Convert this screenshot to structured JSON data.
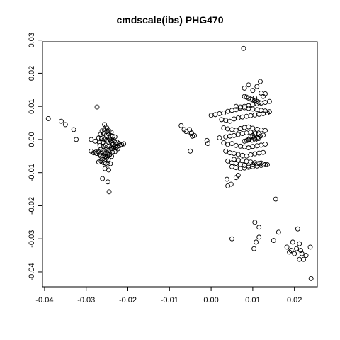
{
  "chart_data": {
    "type": "scatter",
    "title": "cmdscale(ibs) PHG470",
    "xlabel": "",
    "ylabel": "",
    "xlim": [
      -0.0405,
      0.0255
    ],
    "ylim": [
      -0.0445,
      0.0295
    ],
    "xticks": [
      -0.04,
      -0.03,
      -0.02,
      -0.01,
      0.0,
      0.01,
      0.02
    ],
    "xtick_labels": [
      "-0.04",
      "-0.03",
      "-0.02",
      "-0.01",
      "0.00",
      "0.01",
      "0.02"
    ],
    "yticks": [
      -0.04,
      -0.03,
      -0.02,
      -0.01,
      0.0,
      0.01,
      0.02,
      0.03
    ],
    "ytick_labels": [
      "-0.04",
      "-0.03",
      "-0.02",
      "-0.01",
      "0.00",
      "0.01",
      "0.02",
      "0.03"
    ],
    "grid": false,
    "legend": "none",
    "marker": "open-circle",
    "series": [
      {
        "x": [
          -0.0391,
          -0.036,
          -0.035,
          -0.033,
          -0.0324,
          -0.0274,
          -0.0288,
          -0.0278,
          -0.0268,
          -0.026,
          -0.0255,
          -0.0248,
          -0.0242,
          -0.0262,
          -0.0256,
          -0.025,
          -0.0245,
          -0.024,
          -0.0266,
          -0.0258,
          -0.0252,
          -0.0246,
          -0.0241,
          -0.0236,
          -0.0231,
          -0.027,
          -0.0263,
          -0.0257,
          -0.0251,
          -0.0244,
          -0.0238,
          -0.0232,
          -0.0226,
          -0.0221,
          -0.0215,
          -0.0267,
          -0.0259,
          -0.0253,
          -0.0247,
          -0.0243,
          -0.0239,
          -0.0234,
          -0.0228,
          -0.0225,
          -0.0219,
          -0.0288,
          -0.0282,
          -0.0277,
          -0.0271,
          -0.0265,
          -0.0259,
          -0.0252,
          -0.0246,
          -0.024,
          -0.0235,
          -0.0229,
          -0.0275,
          -0.0268,
          -0.0262,
          -0.0255,
          -0.0249,
          -0.0243,
          -0.0237,
          -0.0231,
          -0.0265,
          -0.026,
          -0.0254,
          -0.0249,
          -0.0244,
          -0.0239,
          -0.0261,
          -0.0257,
          -0.0251,
          -0.0247,
          -0.027,
          -0.0264,
          -0.0258,
          -0.0253,
          -0.0248,
          -0.0242,
          -0.0255,
          -0.0246,
          -0.0261,
          -0.0248,
          -0.0245,
          -0.0256,
          -0.0252,
          -0.025,
          -0.0241,
          -0.0238,
          -0.0236,
          -0.023,
          -0.0228,
          -0.0224,
          -0.021,
          -0.0072,
          -0.0065,
          -0.006,
          -0.0052,
          -0.0048,
          -0.0045,
          -0.004,
          -0.005,
          -0.0047,
          -0.001,
          -0.0008,
          0.0,
          0.001,
          0.002,
          0.003,
          0.004,
          0.005,
          0.006,
          0.007,
          0.008,
          0.009,
          0.01,
          0.011,
          0.012,
          0.013,
          0.014,
          0.0025,
          0.0035,
          0.0045,
          0.0055,
          0.0065,
          0.0075,
          0.0085,
          0.0095,
          0.0105,
          0.0115,
          0.0125,
          0.0135,
          0.003,
          0.004,
          0.005,
          0.006,
          0.007,
          0.008,
          0.009,
          0.01,
          0.011,
          0.012,
          0.013,
          0.002,
          0.0035,
          0.0045,
          0.0055,
          0.0065,
          0.0075,
          0.0085,
          0.0095,
          0.0105,
          0.0115,
          0.0125,
          0.003,
          0.004,
          0.005,
          0.006,
          0.007,
          0.008,
          0.009,
          0.01,
          0.011,
          0.012,
          0.013,
          0.0035,
          0.0045,
          0.0055,
          0.0065,
          0.0075,
          0.0085,
          0.0095,
          0.0105,
          0.0115,
          0.0125,
          0.004,
          0.005,
          0.006,
          0.007,
          0.008,
          0.009,
          0.01,
          0.011,
          0.012,
          0.008,
          0.0085,
          0.009,
          0.0095,
          0.01,
          0.0105,
          0.011,
          0.0115,
          0.0095,
          0.01,
          0.0105,
          0.011,
          0.009,
          0.0098,
          0.0104,
          0.0112,
          0.0118,
          0.008,
          0.0086,
          0.0092,
          0.0106,
          0.0114,
          0.006,
          0.007,
          0.008,
          0.009,
          0.01,
          0.011,
          0.012,
          0.013,
          0.014,
          0.0055,
          0.0065,
          0.0075,
          0.0085,
          0.0095,
          0.0105,
          0.0115,
          0.0125,
          0.0135,
          0.005,
          0.006,
          0.007,
          0.008,
          0.009,
          0.01,
          0.011,
          0.012,
          0.013,
          0.008,
          0.01,
          0.012,
          0.009,
          0.011,
          0.013,
          0.0078,
          0.0118,
          0.0125,
          0.0105,
          0.0038,
          0.0048,
          0.006,
          0.0065,
          0.004,
          0.0105,
          0.0115,
          0.0155,
          0.0103,
          0.0108,
          0.0115,
          0.005,
          0.015,
          0.0162,
          0.0182,
          0.0192,
          0.02,
          0.0205,
          0.0212,
          0.0218,
          0.0228,
          0.0238,
          0.0188,
          0.0196,
          0.0208,
          0.0215,
          0.0222,
          0.0212,
          0.024
        ],
        "y": [
          0.0063,
          0.0055,
          0.0045,
          0.003,
          0.0,
          0.0098,
          0.0,
          -0.0005,
          -0.001,
          -0.0008,
          0.0002,
          -0.0002,
          0.0001,
          0.0026,
          0.0028,
          0.0024,
          0.0026,
          0.0022,
          0.0015,
          0.0018,
          0.0013,
          0.0017,
          0.0012,
          0.001,
          0.0008,
          0.0005,
          0.0002,
          0.0,
          -0.0002,
          0.0001,
          -0.0003,
          -0.0005,
          -0.0008,
          -0.0012,
          -0.0015,
          -0.0018,
          -0.002,
          -0.0017,
          -0.0021,
          -0.0019,
          -0.0023,
          -0.0022,
          -0.0025,
          -0.002,
          -0.0018,
          -0.0035,
          -0.004,
          -0.0038,
          -0.0036,
          -0.003,
          -0.0033,
          -0.0031,
          -0.0034,
          -0.0028,
          -0.0026,
          -0.0024,
          -0.0042,
          -0.0045,
          -0.0041,
          -0.0043,
          -0.004,
          -0.0044,
          -0.0039,
          -0.0037,
          -0.005,
          -0.0048,
          -0.0052,
          -0.0049,
          -0.0046,
          -0.0051,
          -0.0058,
          -0.0062,
          -0.0056,
          -0.006,
          -0.0068,
          -0.0065,
          -0.007,
          -0.0072,
          -0.0075,
          -0.0073,
          -0.0088,
          -0.0092,
          -0.0118,
          -0.0128,
          -0.0158,
          0.0045,
          0.0038,
          0.0034,
          -0.0005,
          -0.001,
          -0.0015,
          -0.002,
          -0.0024,
          -0.0028,
          -0.0013,
          0.0042,
          0.003,
          0.0024,
          0.003,
          0.0018,
          0.001,
          0.0012,
          -0.0035,
          0.002,
          -0.0003,
          -0.0012,
          0.0073,
          0.0075,
          0.0078,
          0.008,
          0.0085,
          0.0088,
          0.009,
          0.0095,
          0.01,
          0.0102,
          0.0105,
          0.0108,
          0.011,
          0.0112,
          0.0115,
          0.006,
          0.0058,
          0.0055,
          0.0062,
          0.0065,
          0.0068,
          0.007,
          0.0072,
          0.0074,
          0.0076,
          0.0078,
          0.008,
          0.0035,
          0.0032,
          0.003,
          0.0028,
          0.0033,
          0.0036,
          0.0038,
          0.0034,
          0.0031,
          0.0029,
          0.0027,
          0.0005,
          0.0008,
          0.001,
          0.0012,
          0.0015,
          0.0018,
          0.002,
          0.0022,
          0.0019,
          0.0016,
          0.0013,
          -0.001,
          -0.0015,
          -0.0012,
          -0.0018,
          -0.002,
          -0.0022,
          -0.0025,
          -0.0021,
          -0.0019,
          -0.0017,
          -0.0014,
          -0.0035,
          -0.004,
          -0.0042,
          -0.0045,
          -0.0048,
          -0.005,
          -0.0046,
          -0.0043,
          -0.0041,
          -0.0039,
          -0.0065,
          -0.007,
          -0.0072,
          -0.0075,
          -0.0078,
          -0.008,
          -0.0076,
          -0.0073,
          -0.0071,
          0.013,
          0.0128,
          0.0125,
          0.0122,
          0.012,
          0.0118,
          0.0115,
          0.0112,
          0.0008,
          0.0012,
          0.0016,
          0.0004,
          0.0,
          -0.0002,
          0.0002,
          0.0006,
          0.001,
          -0.0005,
          -0.0003,
          0.0001,
          -0.0001,
          0.0003,
          0.01,
          0.0098,
          0.0096,
          0.0094,
          0.0092,
          0.009,
          0.0088,
          0.0086,
          0.0084,
          -0.006,
          -0.0062,
          -0.0064,
          -0.0066,
          -0.0068,
          -0.007,
          -0.0072,
          -0.0074,
          -0.0076,
          -0.0082,
          -0.0085,
          -0.0088,
          -0.0086,
          -0.0084,
          -0.0082,
          -0.008,
          -0.0078,
          -0.0076,
          0.0155,
          0.0148,
          0.014,
          0.0165,
          0.016,
          0.0138,
          0.0275,
          0.0175,
          0.013,
          0.0125,
          -0.012,
          -0.0135,
          -0.0115,
          -0.0108,
          -0.014,
          -0.025,
          -0.0265,
          -0.018,
          -0.033,
          -0.031,
          -0.0295,
          -0.03,
          -0.0305,
          -0.028,
          -0.0325,
          -0.0335,
          -0.0345,
          -0.033,
          -0.0315,
          -0.0345,
          -0.035,
          -0.0325,
          -0.034,
          -0.031,
          -0.027,
          -0.0335,
          -0.0362,
          -0.0362,
          -0.042
        ]
      }
    ]
  }
}
